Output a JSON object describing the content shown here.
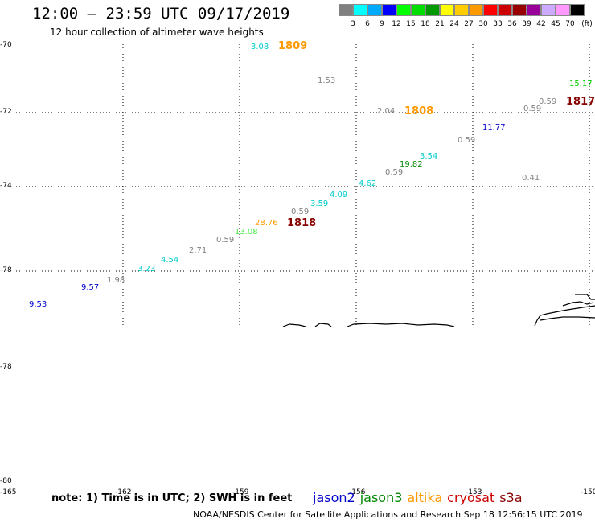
{
  "header": {
    "title": "12:00 – 23:59 UTC 09/17/2019",
    "subtitle": "12 hour collection of altimeter wave heights"
  },
  "legend": {
    "unit": "(ft)",
    "colors": [
      "#808080",
      "#00ffff",
      "#00aaff",
      "#0000ff",
      "#00ff00",
      "#00dd00",
      "#009900",
      "#ffff00",
      "#ffcc00",
      "#ff9900",
      "#ff0000",
      "#cc0000",
      "#990000",
      "#990099",
      "#ccaaff",
      "#ff99ff",
      "#000000"
    ],
    "labels": [
      "3",
      "6",
      "9",
      "12",
      "15",
      "18",
      "21",
      "24",
      "27",
      "30",
      "33",
      "36",
      "39",
      "42",
      "45",
      "70"
    ]
  },
  "lat_labels": [
    "-70",
    "-72",
    "-74",
    "-78",
    "-78",
    "-80"
  ],
  "lon_labels": [
    "-165",
    "-162",
    "-159",
    "-156",
    "-153",
    "-150"
  ],
  "values": [
    {
      "text": "3.08",
      "color": "#00cccc"
    },
    {
      "text": "1.53",
      "color": "#808080"
    },
    {
      "text": "15.17",
      "color": "#00cc00"
    },
    {
      "text": "0.59",
      "color": "#808080"
    },
    {
      "text": "0.59",
      "color": "#808080"
    },
    {
      "text": "2.04",
      "color": "#808080"
    },
    {
      "text": "11.77",
      "color": "#0000cc"
    },
    {
      "text": "0.59",
      "color": "#808080"
    },
    {
      "text": "3.54",
      "color": "#00cccc"
    },
    {
      "text": "19.82",
      "color": "#008800"
    },
    {
      "text": "0.59",
      "color": "#808080"
    },
    {
      "text": "4.62",
      "color": "#00cccc"
    },
    {
      "text": "0.41",
      "color": "#808080"
    },
    {
      "text": "4.09",
      "color": "#00cccc"
    },
    {
      "text": "3.59",
      "color": "#00cccc"
    },
    {
      "text": "0.59",
      "color": "#808080"
    },
    {
      "text": "28.76",
      "color": "#ff9900"
    },
    {
      "text": "13.08",
      "color": "#44ee44"
    },
    {
      "text": "0.59",
      "color": "#808080"
    },
    {
      "text": "2.71",
      "color": "#808080"
    },
    {
      "text": "4.54",
      "color": "#00cccc"
    },
    {
      "text": "3.23",
      "color": "#00cccc"
    },
    {
      "text": "1.98",
      "color": "#808080"
    },
    {
      "text": "9.57",
      "color": "#0000cc"
    },
    {
      "text": "9.53",
      "color": "#0000cc"
    }
  ],
  "time_labels": [
    {
      "text": "1809",
      "color": "#ff9900"
    },
    {
      "text": "1808",
      "color": "#ff9900"
    },
    {
      "text": "1817",
      "color": "#880000"
    },
    {
      "text": "1818",
      "color": "#880000"
    }
  ],
  "footer": {
    "note": "note: 1) Time is in UTC; 2) SWH is in feet",
    "satellites": [
      {
        "name": "jason2",
        "color": "#0000cc"
      },
      {
        "name": "jason3",
        "color": "#008800"
      },
      {
        "name": "altika",
        "color": "#ff9900"
      },
      {
        "name": "cryosat",
        "color": "#cc0000"
      },
      {
        "name": "s3a",
        "color": "#880000"
      }
    ],
    "credit": "NOAA/NESDIS Center for Satellite Applications and Research    Sep 18 12:56:15 UTC 2019"
  }
}
